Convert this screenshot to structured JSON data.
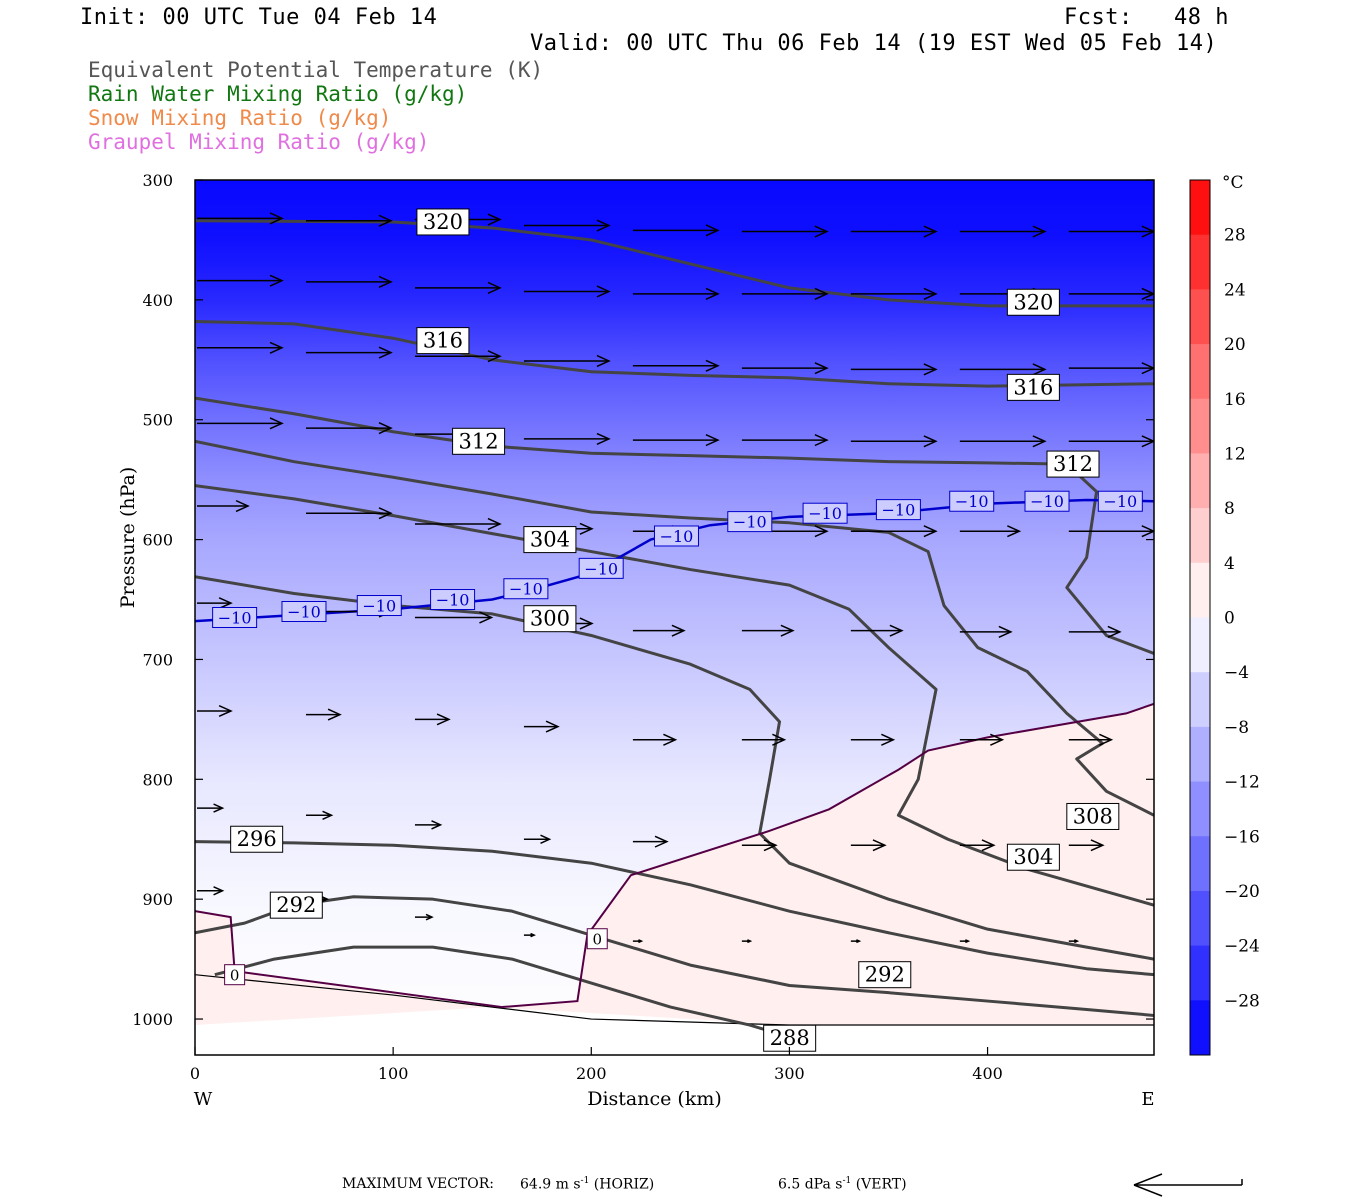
{
  "header": {
    "init": "Init: 00 UTC Tue 04 Feb 14",
    "fcst": "Fcst:   48 h",
    "valid": "Valid: 00 UTC Thu 06 Feb 14 (19 EST Wed 05 Feb 14)"
  },
  "legend": [
    {
      "label": "Equivalent Potential Temperature (K)",
      "color": "#555555"
    },
    {
      "label": "Rain Water Mixing Ratio (g/kg)",
      "color": "#117711"
    },
    {
      "label": "Snow Mixing Ratio (g/kg)",
      "color": "#f08a4a"
    },
    {
      "label": "Graupel Mixing Ratio (g/kg)",
      "color": "#e070e0"
    }
  ],
  "chart_data": {
    "type": "heatmap",
    "xlabel": "Distance (km)",
    "ylabel": "Pressure (hPa)",
    "xlim": [
      0,
      484
    ],
    "ylim": [
      1030,
      300
    ],
    "x_ticks": [
      0,
      100,
      200,
      300,
      400
    ],
    "y_ticks": [
      300,
      400,
      500,
      600,
      700,
      800,
      900,
      1000
    ],
    "x_end_labels": {
      "left": "W",
      "right": "E"
    },
    "colorbar": {
      "unit": "°C",
      "ticks": [
        28,
        24,
        20,
        16,
        12,
        8,
        4,
        0,
        -4,
        -8,
        -12,
        -16,
        -20,
        -24,
        -28
      ],
      "tick_labels": [
        "28",
        "24",
        "20",
        "16",
        "12",
        "8",
        "4",
        "0",
        "−4",
        "−8",
        "−12",
        "−16",
        "−20",
        "−24",
        "−28"
      ],
      "range": [
        -32,
        32
      ]
    },
    "temperature_field": [
      {
        "p": 300,
        "t": -31
      },
      {
        "p": 350,
        "t": -30
      },
      {
        "p": 400,
        "t": -27
      },
      {
        "p": 450,
        "t": -22
      },
      {
        "p": 500,
        "t": -18
      },
      {
        "p": 550,
        "t": -14
      },
      {
        "p": 600,
        "t": -11
      },
      {
        "p": 650,
        "t": -9
      },
      {
        "p": 700,
        "t": -7
      },
      {
        "p": 750,
        "t": -5
      },
      {
        "p": 800,
        "t": -3
      },
      {
        "p": 850,
        "t": -2
      },
      {
        "p": 900,
        "t": -1
      },
      {
        "p": 1030,
        "t": 0
      }
    ],
    "warm_region_temperature": 2,
    "isotherm_zero": {
      "label": "0",
      "color": "#550044",
      "points": [
        [
          0,
          910
        ],
        [
          18,
          915
        ],
        [
          20,
          960
        ],
        [
          155,
          990
        ],
        [
          193,
          985
        ],
        [
          198,
          930
        ],
        [
          220,
          880
        ],
        [
          290,
          843
        ],
        [
          320,
          825
        ],
        [
          355,
          792
        ],
        [
          370,
          776
        ],
        [
          400,
          765
        ],
        [
          470,
          745
        ],
        [
          484,
          737
        ]
      ]
    },
    "isotherm_minus10": {
      "label": "−10",
      "color": "#0000cc",
      "points": [
        [
          0,
          668
        ],
        [
          50,
          663
        ],
        [
          100,
          658
        ],
        [
          150,
          650
        ],
        [
          170,
          642
        ],
        [
          200,
          628
        ],
        [
          230,
          600
        ],
        [
          260,
          588
        ],
        [
          300,
          581
        ],
        [
          350,
          578
        ],
        [
          400,
          570
        ],
        [
          450,
          567
        ],
        [
          484,
          568
        ]
      ]
    },
    "minus10_labels": [
      [
        20,
        665
      ],
      [
        55,
        660
      ],
      [
        93,
        655
      ],
      [
        130,
        650
      ],
      [
        167,
        641
      ],
      [
        205,
        624
      ],
      [
        243,
        597
      ],
      [
        280,
        585
      ],
      [
        318,
        578
      ],
      [
        355,
        575
      ],
      [
        392,
        568
      ],
      [
        430,
        568
      ],
      [
        467,
        568
      ]
    ],
    "theta_e_contours": [
      {
        "label": "320",
        "label_pos": [
          [
            112,
            335
          ],
          [
            410,
            402
          ]
        ],
        "points": [
          [
            0,
            334
          ],
          [
            100,
            335
          ],
          [
            150,
            340
          ],
          [
            200,
            350
          ],
          [
            250,
            370
          ],
          [
            300,
            390
          ],
          [
            350,
            400
          ],
          [
            400,
            405
          ],
          [
            484,
            405
          ]
        ]
      },
      {
        "label": "316",
        "label_pos": [
          [
            112,
            434
          ],
          [
            410,
            473
          ]
        ],
        "points": [
          [
            0,
            418
          ],
          [
            50,
            420
          ],
          [
            100,
            432
          ],
          [
            150,
            450
          ],
          [
            200,
            460
          ],
          [
            250,
            463
          ],
          [
            300,
            465
          ],
          [
            350,
            470
          ],
          [
            400,
            472
          ],
          [
            484,
            470
          ]
        ]
      },
      {
        "label": "312",
        "label_pos": [
          [
            130,
            518
          ],
          [
            430,
            537
          ]
        ],
        "points": [
          [
            0,
            482
          ],
          [
            50,
            495
          ],
          [
            100,
            510
          ],
          [
            150,
            522
          ],
          [
            200,
            528
          ],
          [
            250,
            530
          ],
          [
            300,
            532
          ],
          [
            350,
            535
          ],
          [
            400,
            536
          ],
          [
            440,
            537
          ],
          [
            455,
            560
          ],
          [
            450,
            615
          ],
          [
            440,
            640
          ],
          [
            460,
            680
          ],
          [
            484,
            695
          ]
        ]
      },
      {
        "label": "308",
        "label_pos": [
          [
            440,
            831
          ]
        ],
        "points": [
          [
            0,
            518
          ],
          [
            50,
            535
          ],
          [
            100,
            548
          ],
          [
            150,
            562
          ],
          [
            200,
            577
          ],
          [
            250,
            582
          ],
          [
            300,
            586
          ],
          [
            350,
            594
          ],
          [
            370,
            610
          ],
          [
            378,
            655
          ],
          [
            395,
            690
          ],
          [
            420,
            710
          ],
          [
            440,
            745
          ],
          [
            458,
            770
          ],
          [
            445,
            783
          ],
          [
            460,
            810
          ],
          [
            484,
            830
          ]
        ]
      },
      {
        "label": "304",
        "label_pos": [
          [
            166,
            600
          ],
          [
            410,
            865
          ]
        ],
        "points": [
          [
            0,
            555
          ],
          [
            50,
            566
          ],
          [
            100,
            580
          ],
          [
            150,
            595
          ],
          [
            200,
            610
          ],
          [
            250,
            625
          ],
          [
            300,
            638
          ],
          [
            330,
            658
          ],
          [
            350,
            690
          ],
          [
            374,
            725
          ],
          [
            365,
            800
          ],
          [
            355,
            830
          ],
          [
            380,
            850
          ],
          [
            420,
            875
          ],
          [
            484,
            905
          ]
        ]
      },
      {
        "label": "300",
        "label_pos": [
          [
            166,
            666
          ]
        ],
        "points": [
          [
            0,
            631
          ],
          [
            50,
            645
          ],
          [
            100,
            655
          ],
          [
            150,
            662
          ],
          [
            200,
            680
          ],
          [
            250,
            704
          ],
          [
            280,
            725
          ],
          [
            295,
            752
          ],
          [
            290,
            800
          ],
          [
            285,
            845
          ],
          [
            300,
            870
          ],
          [
            350,
            900
          ],
          [
            400,
            925
          ],
          [
            450,
            940
          ],
          [
            484,
            950
          ]
        ]
      },
      {
        "label": "296",
        "label_pos": [
          [
            18,
            850
          ]
        ],
        "points": [
          [
            0,
            852
          ],
          [
            50,
            853
          ],
          [
            100,
            855
          ],
          [
            150,
            860
          ],
          [
            200,
            870
          ],
          [
            250,
            888
          ],
          [
            300,
            910
          ],
          [
            350,
            928
          ],
          [
            400,
            945
          ],
          [
            450,
            958
          ],
          [
            484,
            963
          ]
        ]
      },
      {
        "label": "292",
        "label_pos": [
          [
            38,
            905
          ],
          [
            335,
            963
          ]
        ],
        "points": [
          [
            0,
            928
          ],
          [
            25,
            920
          ],
          [
            50,
            905
          ],
          [
            80,
            898
          ],
          [
            120,
            900
          ],
          [
            160,
            910
          ],
          [
            200,
            930
          ],
          [
            250,
            955
          ],
          [
            300,
            972
          ],
          [
            350,
            978
          ],
          [
            400,
            985
          ],
          [
            450,
            992
          ],
          [
            484,
            997
          ]
        ]
      },
      {
        "label": "288",
        "label_pos": [
          [
            287,
            1016
          ]
        ],
        "points": [
          [
            10,
            963
          ],
          [
            40,
            950
          ],
          [
            80,
            940
          ],
          [
            120,
            940
          ],
          [
            160,
            950
          ],
          [
            200,
            970
          ],
          [
            240,
            990
          ],
          [
            280,
            1005
          ],
          [
            300,
            1015
          ]
        ]
      }
    ],
    "wind_vectors": [
      {
        "x": 0,
        "p": 332,
        "u": 1
      },
      {
        "x": 55,
        "p": 334,
        "u": 1
      },
      {
        "x": 110,
        "p": 333,
        "u": 1
      },
      {
        "x": 165,
        "p": 338,
        "u": 1
      },
      {
        "x": 220,
        "p": 342,
        "u": 1
      },
      {
        "x": 275,
        "p": 343,
        "u": 1
      },
      {
        "x": 330,
        "p": 343,
        "u": 1
      },
      {
        "x": 385,
        "p": 343,
        "u": 1
      },
      {
        "x": 440,
        "p": 343,
        "u": 1
      },
      {
        "x": 0,
        "p": 384,
        "u": 1
      },
      {
        "x": 55,
        "p": 385,
        "u": 1
      },
      {
        "x": 110,
        "p": 390,
        "u": 1
      },
      {
        "x": 165,
        "p": 393,
        "u": 1
      },
      {
        "x": 220,
        "p": 395,
        "u": 1
      },
      {
        "x": 275,
        "p": 395,
        "u": 1
      },
      {
        "x": 330,
        "p": 395,
        "u": 1
      },
      {
        "x": 385,
        "p": 395,
        "u": 1
      },
      {
        "x": 440,
        "p": 395,
        "u": 1
      },
      {
        "x": 0,
        "p": 440,
        "u": 1
      },
      {
        "x": 55,
        "p": 444,
        "u": 1
      },
      {
        "x": 110,
        "p": 447,
        "u": 1
      },
      {
        "x": 165,
        "p": 451,
        "u": 1
      },
      {
        "x": 220,
        "p": 455,
        "u": 1
      },
      {
        "x": 275,
        "p": 457,
        "u": 1
      },
      {
        "x": 330,
        "p": 458,
        "u": 1
      },
      {
        "x": 385,
        "p": 458,
        "u": 1
      },
      {
        "x": 440,
        "p": 457,
        "u": 1
      },
      {
        "x": 0,
        "p": 503,
        "u": 1
      },
      {
        "x": 55,
        "p": 507,
        "u": 1
      },
      {
        "x": 110,
        "p": 512,
        "u": 1
      },
      {
        "x": 165,
        "p": 516,
        "u": 1
      },
      {
        "x": 220,
        "p": 517,
        "u": 1
      },
      {
        "x": 275,
        "p": 517,
        "u": 1
      },
      {
        "x": 330,
        "p": 518,
        "u": 1
      },
      {
        "x": 385,
        "p": 518,
        "u": 1
      },
      {
        "x": 440,
        "p": 518,
        "u": 1
      },
      {
        "x": 0,
        "p": 572,
        "u": 0.6
      },
      {
        "x": 55,
        "p": 578,
        "u": 1
      },
      {
        "x": 110,
        "p": 587,
        "u": 1
      },
      {
        "x": 165,
        "p": 591,
        "u": 0.8
      },
      {
        "x": 220,
        "p": 593,
        "u": 0.6
      },
      {
        "x": 275,
        "p": 593,
        "u": 1
      },
      {
        "x": 330,
        "p": 593,
        "u": 1
      },
      {
        "x": 385,
        "p": 593,
        "u": 0.7
      },
      {
        "x": 440,
        "p": 593,
        "u": 1
      },
      {
        "x": 0,
        "p": 653,
        "u": 0.4
      },
      {
        "x": 55,
        "p": 660,
        "u": 1
      },
      {
        "x": 110,
        "p": 665,
        "u": 0.9
      },
      {
        "x": 165,
        "p": 670,
        "u": 0.8
      },
      {
        "x": 220,
        "p": 676,
        "u": 0.6
      },
      {
        "x": 275,
        "p": 676,
        "u": 0.6
      },
      {
        "x": 330,
        "p": 676,
        "u": 0.6
      },
      {
        "x": 385,
        "p": 677,
        "u": 0.6
      },
      {
        "x": 440,
        "p": 677,
        "u": 0.6
      },
      {
        "x": 0,
        "p": 743,
        "u": 0.4
      },
      {
        "x": 55,
        "p": 746,
        "u": 0.4
      },
      {
        "x": 110,
        "p": 750,
        "u": 0.4
      },
      {
        "x": 165,
        "p": 756,
        "u": 0.4
      },
      {
        "x": 220,
        "p": 767,
        "u": 0.5
      },
      {
        "x": 275,
        "p": 767,
        "u": 0.5
      },
      {
        "x": 330,
        "p": 767,
        "u": 0.5
      },
      {
        "x": 385,
        "p": 767,
        "u": 0.5
      },
      {
        "x": 440,
        "p": 767,
        "u": 0.5
      },
      {
        "x": 0,
        "p": 824,
        "u": 0.3
      },
      {
        "x": 55,
        "p": 830,
        "u": 0.3
      },
      {
        "x": 110,
        "p": 838,
        "u": 0.3
      },
      {
        "x": 165,
        "p": 850,
        "u": 0.3
      },
      {
        "x": 220,
        "p": 852,
        "u": 0.4
      },
      {
        "x": 275,
        "p": 855,
        "u": 0.4
      },
      {
        "x": 330,
        "p": 855,
        "u": 0.4
      },
      {
        "x": 385,
        "p": 855,
        "u": 0.4
      },
      {
        "x": 440,
        "p": 855,
        "u": 0.4
      },
      {
        "x": 0,
        "p": 893,
        "u": 0.3
      },
      {
        "x": 55,
        "p": 900,
        "u": 0.25
      },
      {
        "x": 110,
        "p": 915,
        "u": 0.2
      },
      {
        "x": 165,
        "p": 930,
        "u": 0.12
      },
      {
        "x": 220,
        "p": 935,
        "u": 0.1
      },
      {
        "x": 275,
        "p": 935,
        "u": 0.1
      },
      {
        "x": 330,
        "p": 935,
        "u": 0.1
      },
      {
        "x": 385,
        "p": 935,
        "u": 0.1
      },
      {
        "x": 440,
        "p": 935,
        "u": 0.1
      }
    ]
  },
  "footer": {
    "max_vector_label": "MAXIMUM VECTOR:",
    "horiz_value": "64.9 m s",
    "horiz_exp": "-1",
    "horiz_unit": "(HORIZ)",
    "vert_value": "6.5 dPa s",
    "vert_exp": "-1",
    "vert_unit": "(VERT)"
  },
  "colors": {
    "theta_e": "#444444",
    "cold": "#0000ff",
    "warm": "#ff0000",
    "neutral": "#ffffff"
  }
}
